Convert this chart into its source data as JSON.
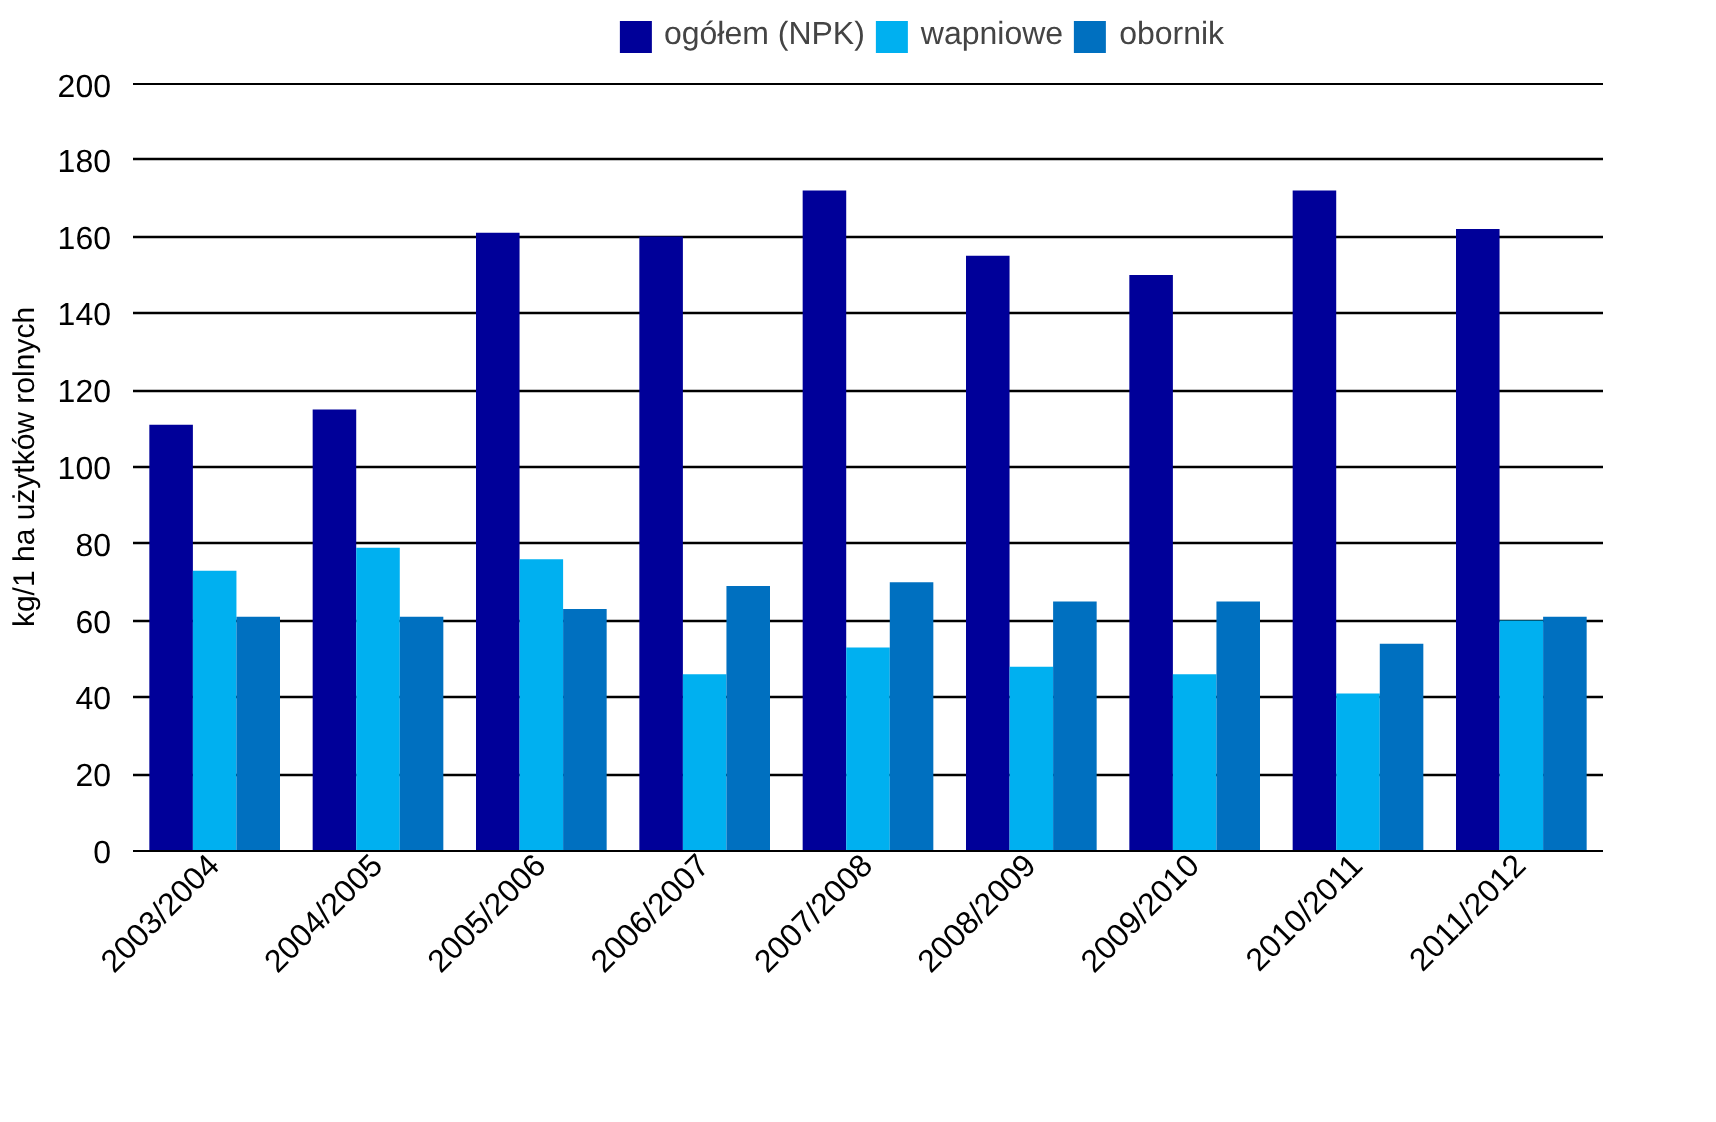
{
  "chart_data": {
    "type": "bar",
    "ylabel": "kg/1 ha użytków rolnych",
    "categories": [
      "2003/2004",
      "2004/2005",
      "2005/2006",
      "2006/2007",
      "2007/2008",
      "2008/2009",
      "2009/2010",
      "2010/2011",
      "2011/2012"
    ],
    "series": [
      {
        "name": "ogółem (NPK)",
        "color": "#000099",
        "values": [
          111,
          115,
          161,
          160,
          172,
          155,
          150,
          172,
          162
        ]
      },
      {
        "name": "wapniowe",
        "color": "#00b0f0",
        "values": [
          73,
          79,
          76,
          46,
          53,
          48,
          46,
          41,
          60
        ]
      },
      {
        "name": "obornik",
        "color": "#0070c0",
        "values": [
          61,
          61,
          63,
          69,
          70,
          65,
          65,
          54,
          61
        ]
      }
    ],
    "ylim": [
      0,
      200
    ],
    "yticks": [
      0,
      20,
      40,
      60,
      80,
      100,
      120,
      140,
      160,
      180,
      200
    ],
    "grid": "y",
    "legend": "top"
  }
}
